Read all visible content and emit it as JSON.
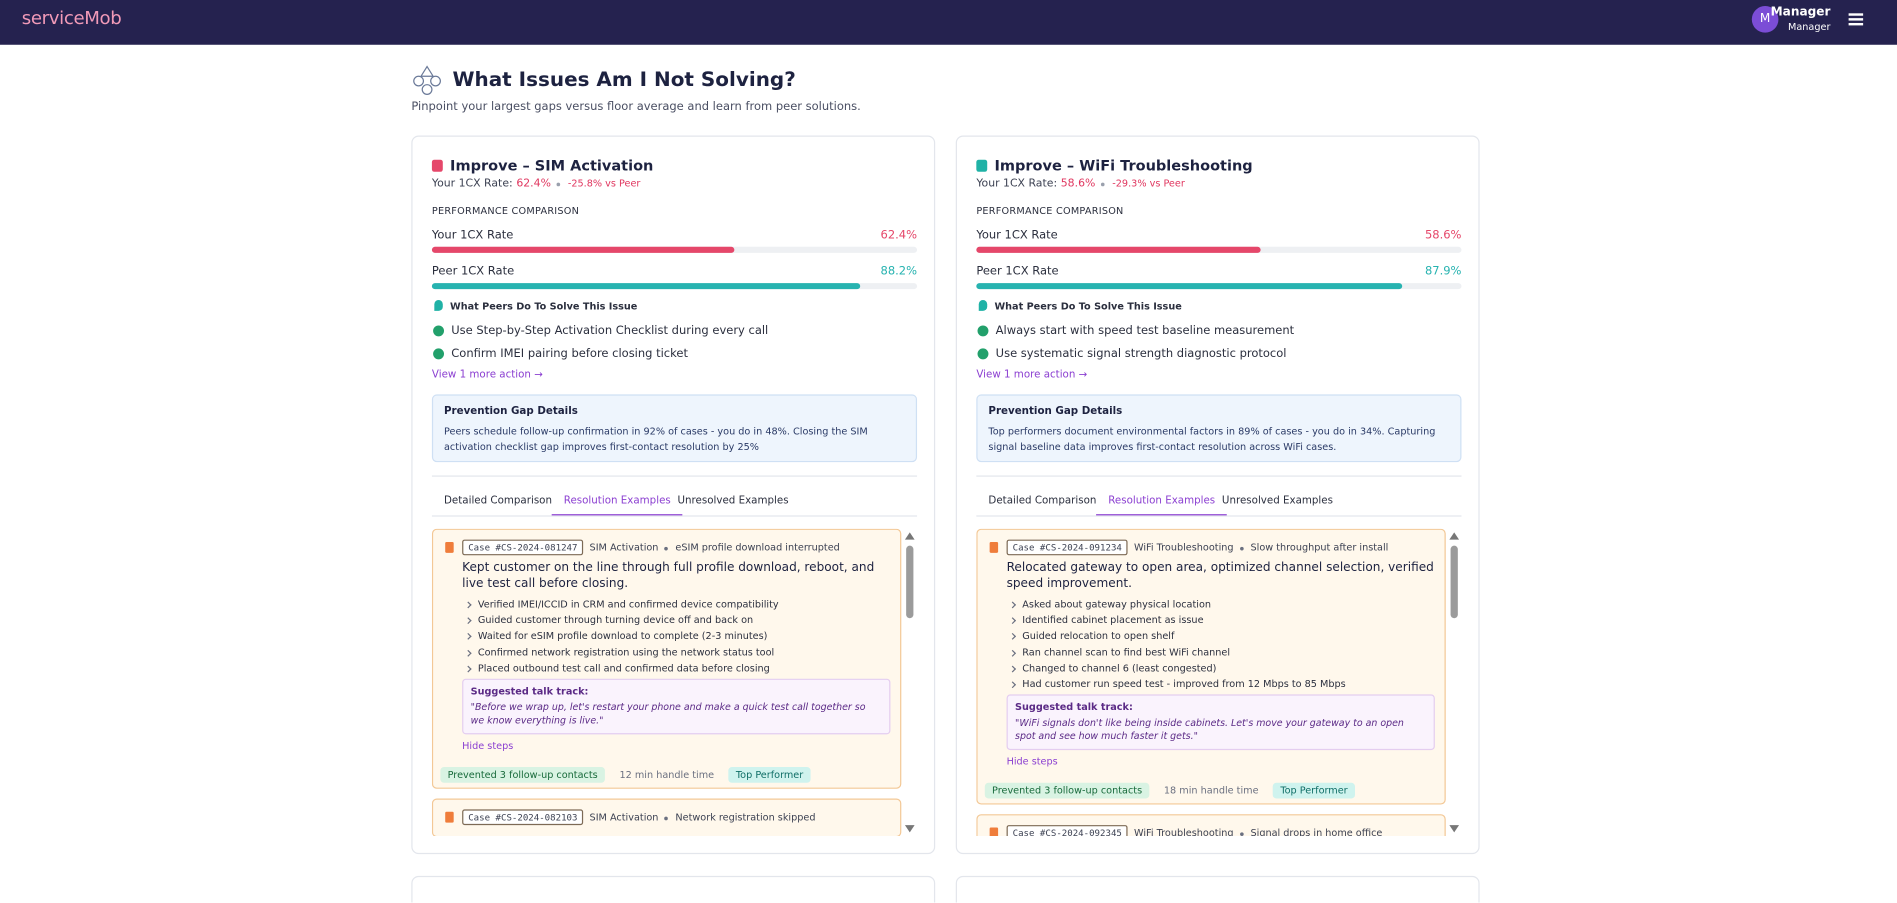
{
  "header": {
    "brand": "serviceMob",
    "user": {
      "initial": "M",
      "name": "Manager",
      "role": "Manager"
    }
  },
  "page": {
    "title": "What Issues Am I Not Solving?",
    "subtitle": "Pinpoint your largest gaps versus floor average and learn from peer solutions."
  },
  "cards": [
    {
      "title": "Improve – SIM Activation",
      "icon_color": "#e5476a",
      "rate_label": "Your 1CX Rate:",
      "rate": "62.4%",
      "delta": "-25.8% vs Peer",
      "comparison_heading": "PERFORMANCE COMPARISON",
      "bars": [
        {
          "label": "Your 1CX Rate",
          "value": 62.4,
          "value_label": "62.4%",
          "color": "#e5476a"
        },
        {
          "label": "Peer 1CX Rate",
          "value": 88.2,
          "value_label": "88.2%",
          "color": "#27b3b0"
        }
      ],
      "peers_heading": "What Peers Do To Solve This Issue",
      "actions": [
        "Use Step-by-Step Activation Checklist during every call",
        "Confirm IMEI pairing before closing ticket"
      ],
      "more_link": "View 1 more action →",
      "gap": {
        "title": "Prevention Gap Details",
        "text": "Peers schedule follow-up confirmation in 92% of cases - you do in 48%. Closing the SIM activation checklist gap improves first-contact resolution by 25%"
      },
      "tabs": [
        "Detailed Comparison",
        "Resolution Examples",
        "Unresolved Examples"
      ],
      "active_tab": 1,
      "examples": [
        {
          "case_id": "Case #CS-2024-081247",
          "category": "SIM Activation",
          "issue": "eSIM profile download interrupted",
          "headline": "Kept customer on the line through full profile download, reboot, and live test call before closing.",
          "steps": [
            "Verified IMEI/ICCID in CRM and confirmed device compatibility",
            "Guided customer through turning device off and back on",
            "Waited for eSIM profile download to complete (2-3 minutes)",
            "Confirmed network registration using the network status tool",
            "Placed outbound test call and confirmed data before closing"
          ],
          "talk_label": "Suggested talk track:",
          "talk": "\"Before we wrap up, let's restart your phone and make a quick test call together so we know everything is live.\"",
          "hide": "Hide steps",
          "badges": [
            "Prevented 3 follow-up contacts",
            "12 min handle time",
            "Top Performer"
          ]
        },
        {
          "case_id": "Case #CS-2024-082103",
          "category": "SIM Activation",
          "issue": "Network registration skipped"
        }
      ]
    },
    {
      "title": "Improve – WiFi Troubleshooting",
      "icon_color": "#20b2a6",
      "rate_label": "Your 1CX Rate:",
      "rate": "58.6%",
      "delta": "-29.3% vs Peer",
      "comparison_heading": "PERFORMANCE COMPARISON",
      "bars": [
        {
          "label": "Your 1CX Rate",
          "value": 58.6,
          "value_label": "58.6%",
          "color": "#e5476a"
        },
        {
          "label": "Peer 1CX Rate",
          "value": 87.9,
          "value_label": "87.9%",
          "color": "#27b3b0"
        }
      ],
      "peers_heading": "What Peers Do To Solve This Issue",
      "actions": [
        "Always start with speed test baseline measurement",
        "Use systematic signal strength diagnostic protocol"
      ],
      "more_link": "View 1 more action →",
      "gap": {
        "title": "Prevention Gap Details",
        "text": "Top performers document environmental factors in 89% of cases - you do in 34%. Capturing signal baseline data improves first-contact resolution across WiFi cases."
      },
      "tabs": [
        "Detailed Comparison",
        "Resolution Examples",
        "Unresolved Examples"
      ],
      "active_tab": 1,
      "examples": [
        {
          "case_id": "Case #CS-2024-091234",
          "category": "WiFi Troubleshooting",
          "issue": "Slow throughput after install",
          "headline": "Relocated gateway to open area, optimized channel selection, verified speed improvement.",
          "steps": [
            "Asked about gateway physical location",
            "Identified cabinet placement as issue",
            "Guided relocation to open shelf",
            "Ran channel scan to find best WiFi channel",
            "Changed to channel 6 (least congested)",
            "Had customer run speed test - improved from 12 Mbps to 85 Mbps"
          ],
          "talk_label": "Suggested talk track:",
          "talk": "\"WiFi signals don't like being inside cabinets. Let's move your gateway to an open spot and see how much faster it gets.\"",
          "hide": "Hide steps",
          "badges": [
            "Prevented 3 follow-up contacts",
            "18 min handle time",
            "Top Performer"
          ]
        },
        {
          "case_id": "Case #CS-2024-092345",
          "category": "WiFi Troubleshooting",
          "issue": "Signal drops in home office"
        }
      ]
    }
  ]
}
